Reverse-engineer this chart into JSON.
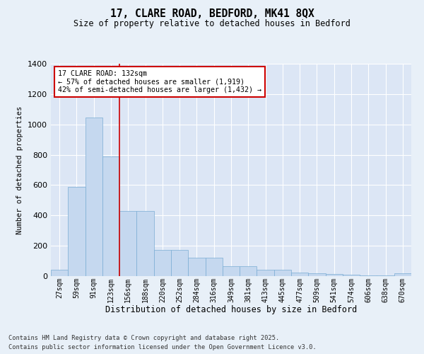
{
  "title_line1": "17, CLARE ROAD, BEDFORD, MK41 8QX",
  "title_line2": "Size of property relative to detached houses in Bedford",
  "xlabel": "Distribution of detached houses by size in Bedford",
  "ylabel": "Number of detached properties",
  "bar_color": "#c5d8ef",
  "bar_edge_color": "#7aadd4",
  "plot_bg_color": "#dce6f5",
  "grid_color": "#ffffff",
  "fig_bg_color": "#e8f0f8",
  "categories": [
    "27sqm",
    "59sqm",
    "91sqm",
    "123sqm",
    "156sqm",
    "188sqm",
    "220sqm",
    "252sqm",
    "284sqm",
    "316sqm",
    "349sqm",
    "381sqm",
    "413sqm",
    "445sqm",
    "477sqm",
    "509sqm",
    "541sqm",
    "574sqm",
    "606sqm",
    "638sqm",
    "670sqm"
  ],
  "values": [
    40,
    590,
    1045,
    790,
    430,
    430,
    175,
    175,
    120,
    120,
    65,
    65,
    40,
    40,
    25,
    18,
    12,
    8,
    4,
    3,
    18
  ],
  "ylim": [
    0,
    1400
  ],
  "yticks": [
    0,
    200,
    400,
    600,
    800,
    1000,
    1200,
    1400
  ],
  "red_line_x": 3.5,
  "annotation_title": "17 CLARE ROAD: 132sqm",
  "annotation_line2": "← 57% of detached houses are smaller (1,919)",
  "annotation_line3": "42% of semi-detached houses are larger (1,432) →",
  "red_line_color": "#cc0000",
  "annotation_box_edge_color": "#cc0000",
  "annotation_box_face_color": "#ffffff",
  "footnote1": "Contains HM Land Registry data © Crown copyright and database right 2025.",
  "footnote2": "Contains public sector information licensed under the Open Government Licence v3.0."
}
